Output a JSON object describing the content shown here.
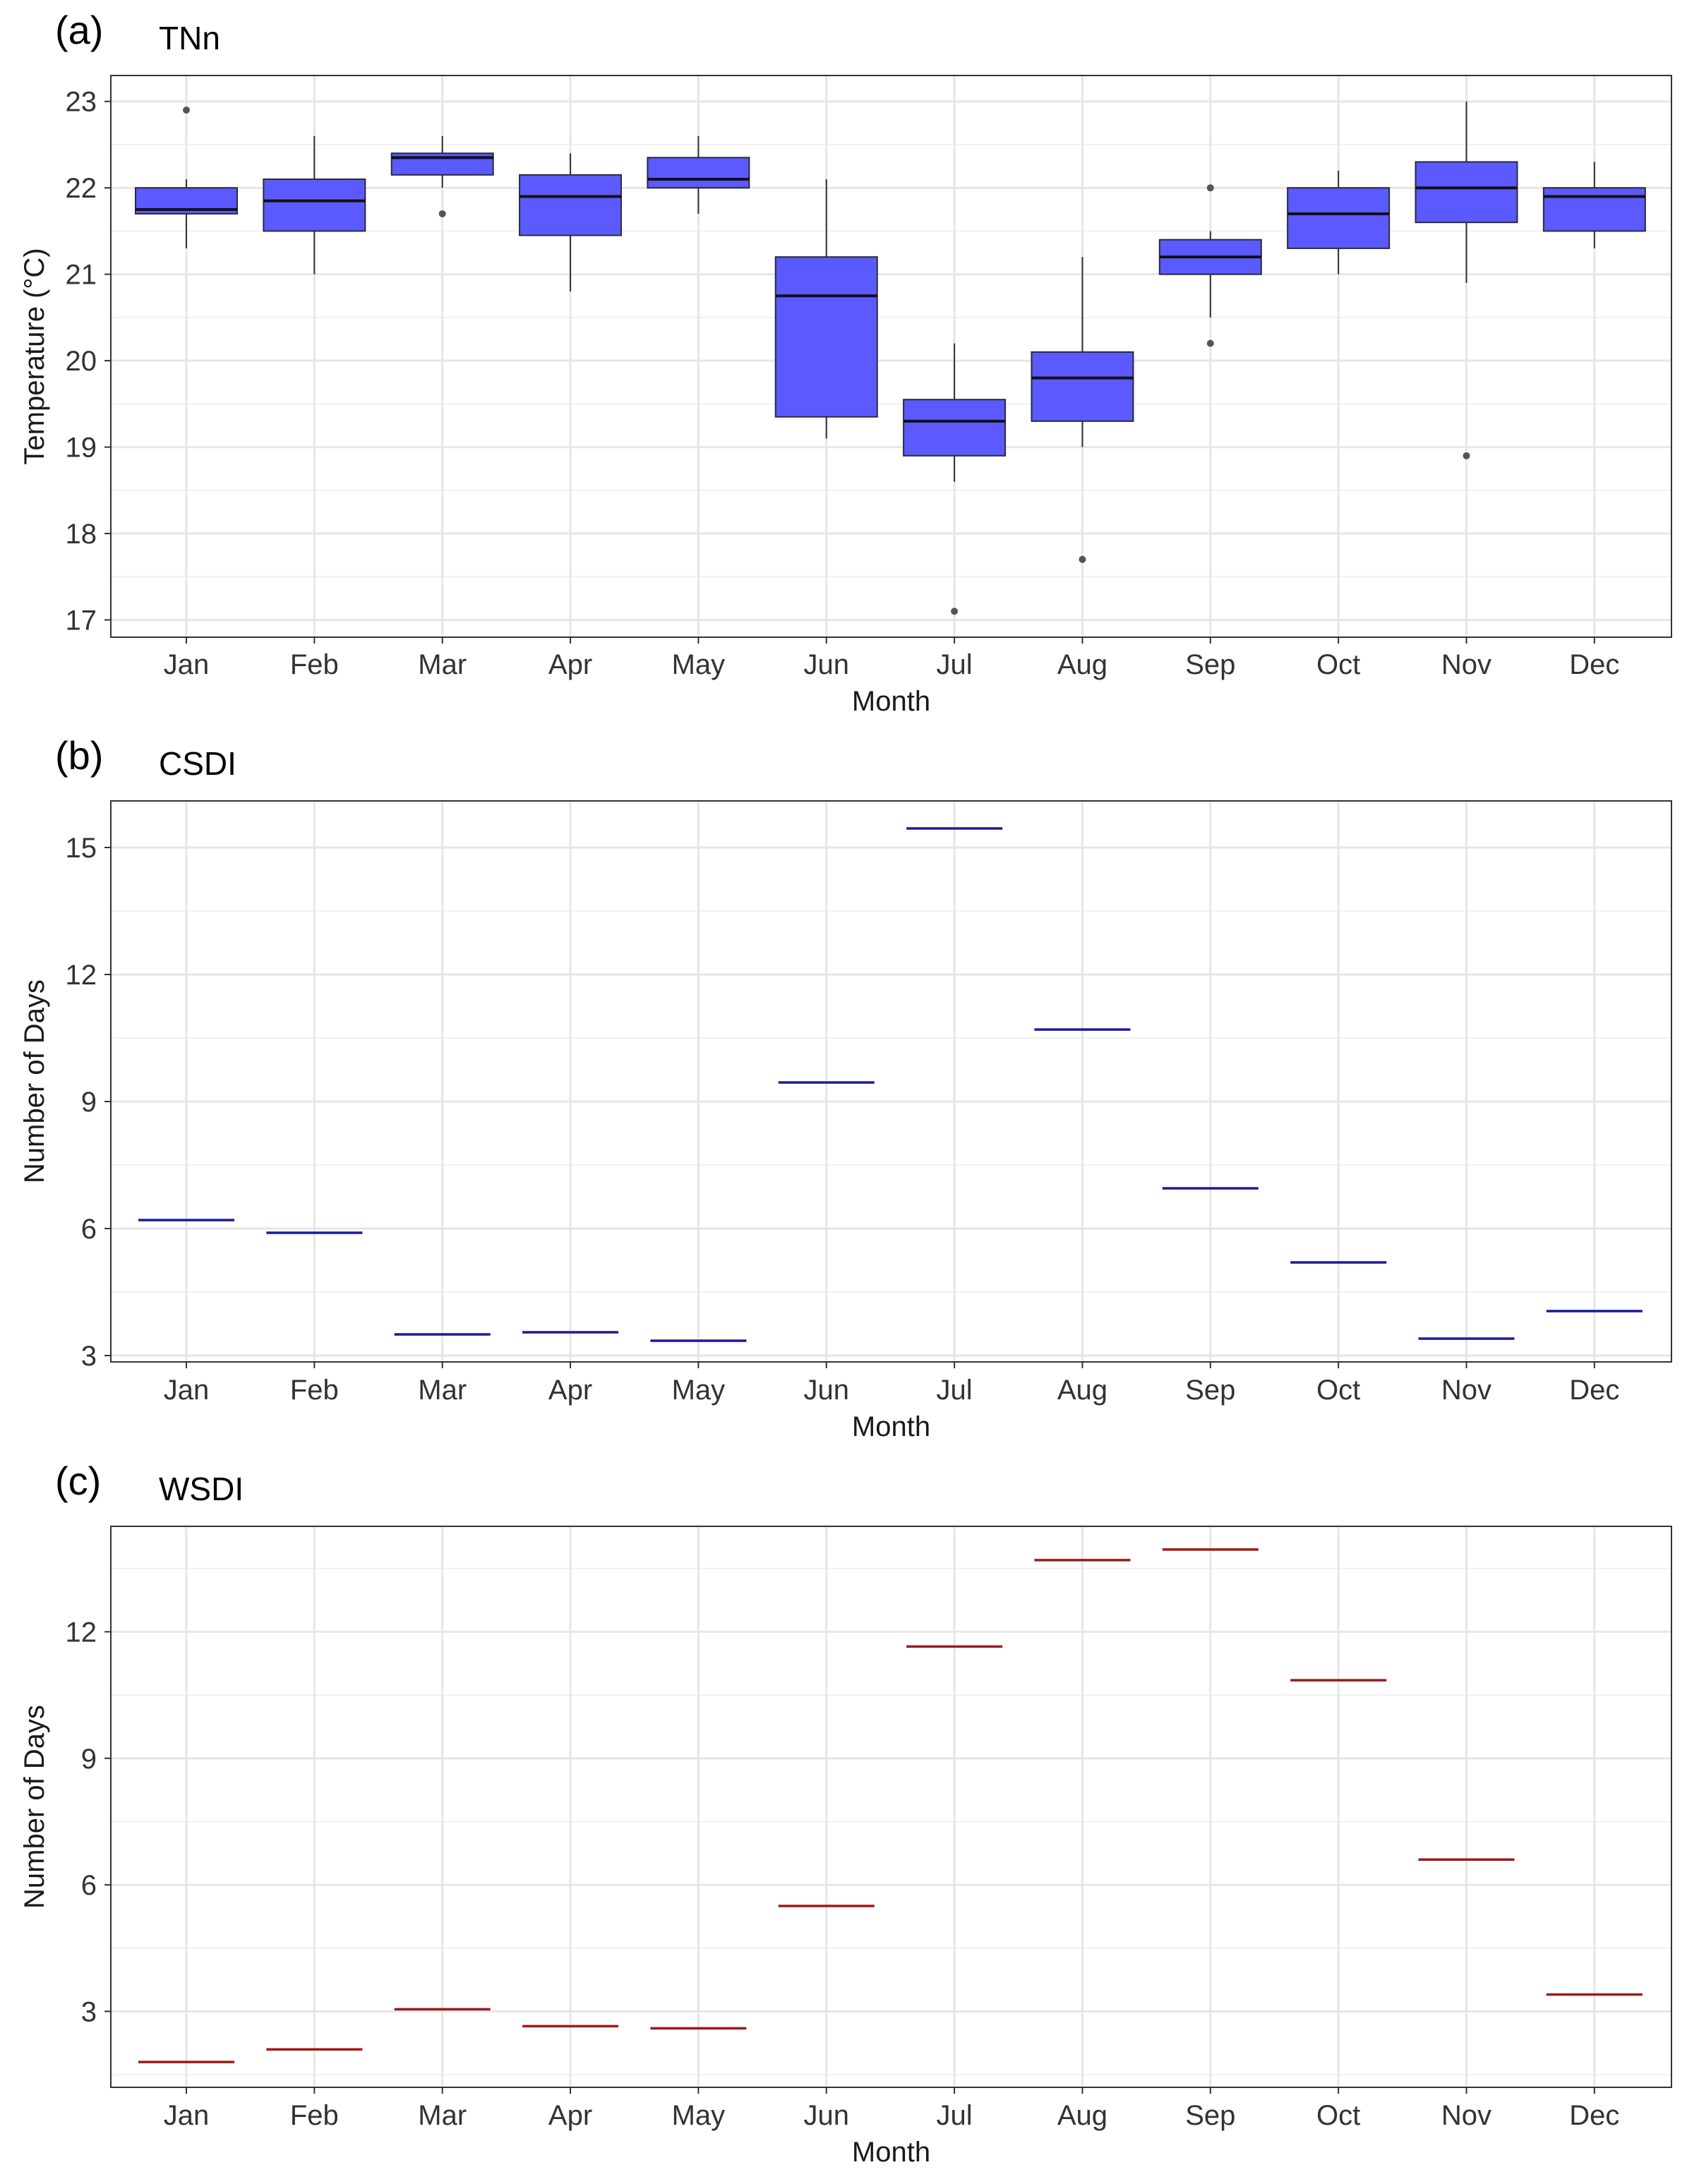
{
  "chart_data": [
    {
      "panel": "(a)",
      "title": "TNn",
      "type": "box",
      "xlabel": "Month",
      "ylabel": "Temperature (°C)",
      "ylim": [
        16.8,
        23.3
      ],
      "yticks": [
        17,
        18,
        19,
        20,
        21,
        22,
        23
      ],
      "categories": [
        "Jan",
        "Feb",
        "Mar",
        "Apr",
        "May",
        "Jun",
        "Jul",
        "Aug",
        "Sep",
        "Oct",
        "Nov",
        "Dec"
      ],
      "box_color": "#5a5aff",
      "boxes": [
        {
          "month": "Jan",
          "min": 21.3,
          "q1": 21.7,
          "median": 21.75,
          "q3": 22.0,
          "max": 22.1,
          "outliers": [
            22.9
          ]
        },
        {
          "month": "Feb",
          "min": 21.0,
          "q1": 21.5,
          "median": 21.85,
          "q3": 22.1,
          "max": 22.6,
          "outliers": []
        },
        {
          "month": "Mar",
          "min": 22.0,
          "q1": 22.15,
          "median": 22.35,
          "q3": 22.4,
          "max": 22.6,
          "outliers": [
            21.7
          ]
        },
        {
          "month": "Apr",
          "min": 20.8,
          "q1": 21.45,
          "median": 21.9,
          "q3": 22.15,
          "max": 22.4,
          "outliers": []
        },
        {
          "month": "May",
          "min": 21.7,
          "q1": 22.0,
          "median": 22.1,
          "q3": 22.35,
          "max": 22.6,
          "outliers": []
        },
        {
          "month": "Jun",
          "min": 19.1,
          "q1": 19.35,
          "median": 20.75,
          "q3": 21.2,
          "max": 22.1,
          "outliers": []
        },
        {
          "month": "Jul",
          "min": 18.6,
          "q1": 18.9,
          "median": 19.3,
          "q3": 19.55,
          "max": 20.2,
          "outliers": [
            17.1
          ]
        },
        {
          "month": "Aug",
          "min": 19.0,
          "q1": 19.3,
          "median": 19.8,
          "q3": 20.1,
          "max": 21.2,
          "outliers": [
            17.7
          ]
        },
        {
          "month": "Sep",
          "min": 20.5,
          "q1": 21.0,
          "median": 21.2,
          "q3": 21.4,
          "max": 21.5,
          "outliers": [
            22.0,
            20.2
          ]
        },
        {
          "month": "Oct",
          "min": 21.0,
          "q1": 21.3,
          "median": 21.7,
          "q3": 22.0,
          "max": 22.2,
          "outliers": []
        },
        {
          "month": "Nov",
          "min": 20.9,
          "q1": 21.6,
          "median": 22.0,
          "q3": 22.3,
          "max": 23.0,
          "outliers": [
            18.9
          ]
        },
        {
          "month": "Dec",
          "min": 21.3,
          "q1": 21.5,
          "median": 21.9,
          "q3": 22.0,
          "max": 22.3,
          "outliers": []
        }
      ]
    },
    {
      "panel": "(b)",
      "title": "CSDI",
      "type": "crossbar",
      "xlabel": "Month",
      "ylabel": "Number of Days",
      "ylim": [
        2.85,
        16.1
      ],
      "yticks": [
        3,
        6,
        9,
        12,
        15
      ],
      "categories": [
        "Jan",
        "Feb",
        "Mar",
        "Apr",
        "May",
        "Jun",
        "Jul",
        "Aug",
        "Sep",
        "Oct",
        "Nov",
        "Dec"
      ],
      "values": [
        6.2,
        5.9,
        3.5,
        3.55,
        3.35,
        9.45,
        15.45,
        10.7,
        6.95,
        5.2,
        3.4,
        4.05
      ],
      "line_color": "#1a1a9e"
    },
    {
      "panel": "(c)",
      "title": "WSDI",
      "type": "crossbar",
      "xlabel": "Month",
      "ylabel": "Number of Days",
      "ylim": [
        1.2,
        14.5
      ],
      "yticks": [
        3,
        6,
        9,
        12
      ],
      "categories": [
        "Jan",
        "Feb",
        "Mar",
        "Apr",
        "May",
        "Jun",
        "Jul",
        "Aug",
        "Sep",
        "Oct",
        "Nov",
        "Dec"
      ],
      "values": [
        1.8,
        2.1,
        3.05,
        2.65,
        2.6,
        5.5,
        11.65,
        13.7,
        13.95,
        10.85,
        6.6,
        3.4
      ],
      "line_color": "#9e1a1a"
    }
  ]
}
